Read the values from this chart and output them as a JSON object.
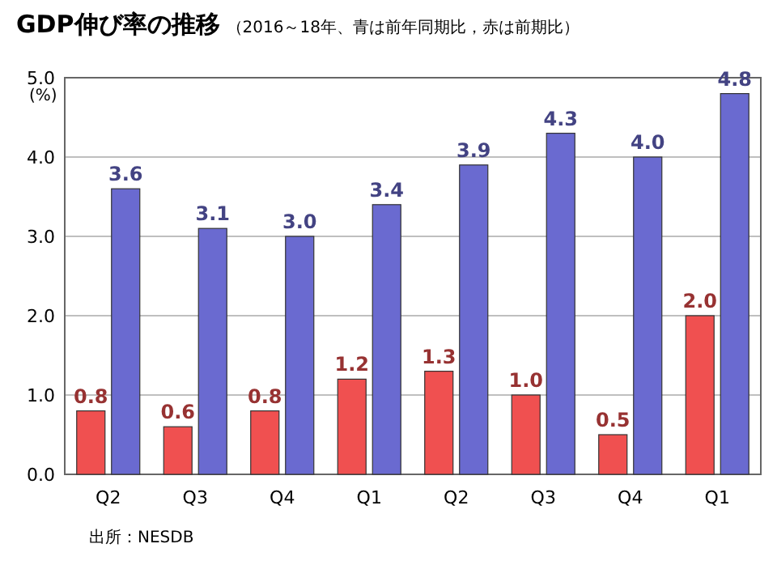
{
  "chart_data": {
    "type": "bar",
    "title": "GDP伸び率の推移",
    "subtitle": "（2016～18年、青は前年同期比，赤は前期比）",
    "ylabel": "(%)",
    "categories": [
      "Q2",
      "Q3",
      "Q4",
      "Q1",
      "Q2",
      "Q3",
      "Q4",
      "Q1"
    ],
    "series": [
      {
        "color": "#f05050",
        "values": [
          0.8,
          0.6,
          0.8,
          1.2,
          1.3,
          1.0,
          0.5,
          2.0
        ],
        "value_labels": [
          "0.8",
          "0.6",
          "0.8",
          "1.2",
          "1.3",
          "1.0",
          "0.5",
          "2.0"
        ]
      },
      {
        "color": "#6a6ad0",
        "values": [
          3.6,
          3.1,
          3.0,
          3.4,
          3.9,
          4.3,
          4.0,
          4.8
        ],
        "value_labels": [
          "3.6",
          "3.1",
          "3.0",
          "3.4",
          "3.9",
          "4.3",
          "4.0",
          "4.8"
        ]
      }
    ],
    "ylim": [
      0,
      5
    ],
    "yticks": [
      {
        "value": 0,
        "label": "0.0"
      },
      {
        "value": 1,
        "label": "1.0"
      },
      {
        "value": 2,
        "label": "2.0"
      },
      {
        "value": 3,
        "label": "3.0"
      },
      {
        "value": 4,
        "label": "4.0"
      },
      {
        "value": 5,
        "label": "5.0"
      }
    ],
    "grid": "y",
    "annotations": [
      "出所：NESDB"
    ]
  }
}
